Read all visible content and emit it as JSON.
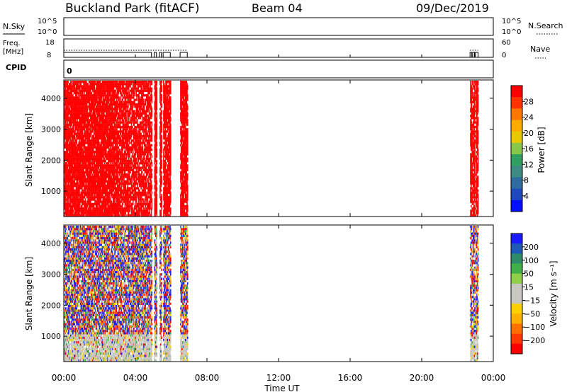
{
  "header": {
    "station": "Buckland Park (fitACF)",
    "beam": "Beam 04",
    "date": "09/Dec/2019"
  },
  "noise_panel": {
    "label_left": "N.Sky",
    "label_right": "N.Search",
    "ticks_left": [
      "10^5",
      "10^0"
    ],
    "ticks_right": [
      "10^5",
      "10^0"
    ]
  },
  "freq_panel": {
    "label_left_1": "Freq.",
    "label_left_2": "[MHz]",
    "ticks_left": [
      "18",
      "8"
    ],
    "ticks_right": [
      "60",
      "0"
    ],
    "label_right": "Nave"
  },
  "cpid_panel": {
    "label": "CPID",
    "value": "0"
  },
  "x_axis": {
    "label": "Time UT",
    "ticks": [
      "00:00",
      "04:00",
      "08:00",
      "12:00",
      "16:00",
      "20:00",
      "00:00"
    ]
  },
  "colors": {
    "power_red": "#ff0000",
    "axis": "#000000",
    "grey_scatter": "#c8c8c0"
  },
  "chart_data": [
    {
      "type": "heatmap",
      "title": "",
      "xlabel": "Time UT",
      "ylabel": "Slant Range [km]",
      "xlim_hours": [
        0,
        24
      ],
      "ylim": [
        180,
        4590
      ],
      "y_ticks": [
        1000,
        2000,
        3000,
        4000
      ],
      "colorbar_label": "Power [dB]",
      "colorbar_ticks": [
        "28",
        "24",
        "20",
        "16",
        "12",
        "8",
        "4"
      ],
      "colorbar_colors": [
        "#ff0000",
        "#ff3300",
        "#ff7700",
        "#ffaa00",
        "#e8c800",
        "#88c848",
        "#30a060",
        "#3c8c84",
        "#2e6ca0",
        "#1e48c0",
        "#0010ff"
      ],
      "data_segments_hours": [
        [
          0.0,
          4.9
        ],
        [
          5.05,
          5.18
        ],
        [
          5.35,
          5.45
        ],
        [
          5.55,
          5.95
        ],
        [
          6.5,
          6.9
        ],
        [
          22.7,
          22.8
        ],
        [
          22.85,
          22.95
        ],
        [
          23.0,
          23.15
        ]
      ],
      "dominant_value_db": 28
    },
    {
      "type": "heatmap",
      "title": "",
      "xlabel": "Time UT",
      "ylabel": "Slant Range [km]",
      "xlim_hours": [
        0,
        24
      ],
      "ylim": [
        180,
        4590
      ],
      "y_ticks": [
        1000,
        2000,
        3000,
        4000
      ],
      "colorbar_label": "Velocity [m s⁻¹]",
      "colorbar_ticks": [
        "200",
        "100",
        "50",
        "15",
        "−15",
        "−50",
        "−100",
        "−200"
      ],
      "colorbar_colors": [
        "#1a1aff",
        "#1f5ab8",
        "#2f8a6a",
        "#40b048",
        "#8fd048",
        "#c8c8c0",
        "#c8c8c0",
        "#ffd000",
        "#ffb000",
        "#ff7000",
        "#ff3a00",
        "#ff0000"
      ],
      "data_segments_hours": [
        [
          0.0,
          4.9
        ],
        [
          5.05,
          5.18
        ],
        [
          5.35,
          5.45
        ],
        [
          5.55,
          5.95
        ],
        [
          6.5,
          6.9
        ],
        [
          22.7,
          22.8
        ],
        [
          22.85,
          22.95
        ],
        [
          23.0,
          23.15
        ]
      ],
      "low_range_ground_scatter_below_km": 1100
    }
  ]
}
